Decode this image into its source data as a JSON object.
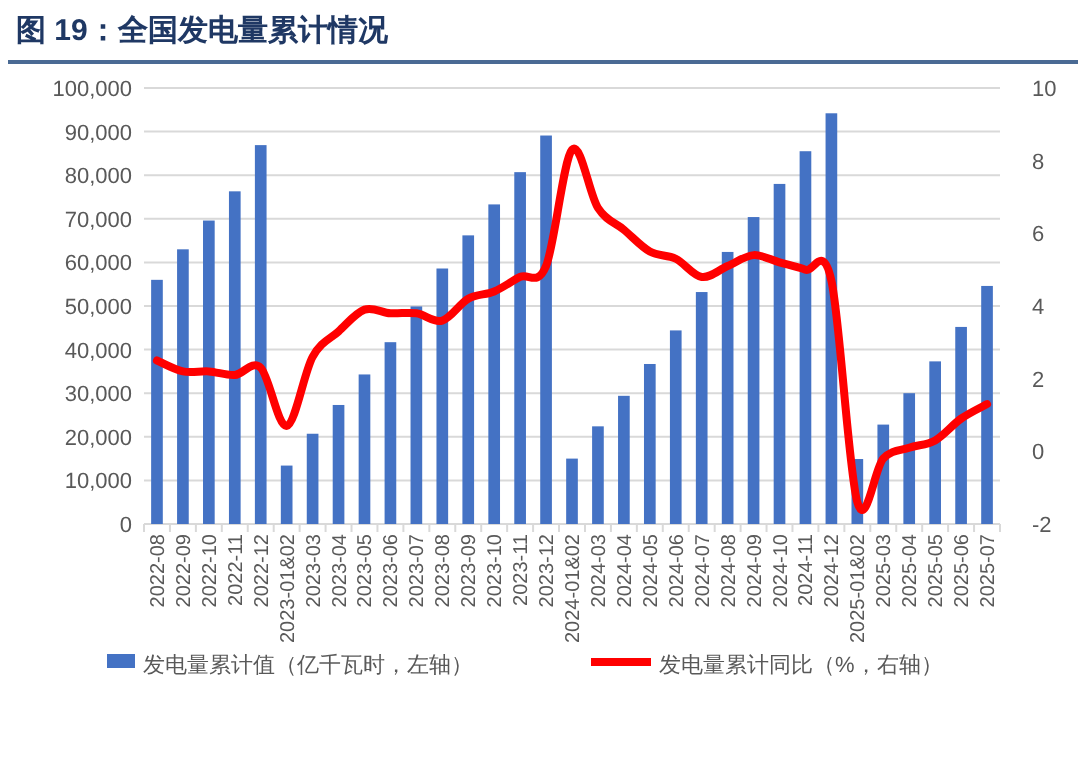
{
  "chart_data": {
    "type": "bar",
    "title": "图 19：全国发电量累计情况",
    "categories": [
      "2022-08",
      "2022-09",
      "2022-10",
      "2022-11",
      "2022-12",
      "2023-01&02",
      "2023-03",
      "2023-04",
      "2023-05",
      "2023-06",
      "2023-07",
      "2023-08",
      "2023-09",
      "2023-10",
      "2023-11",
      "2023-12",
      "2024-01&02",
      "2024-03",
      "2024-04",
      "2024-05",
      "2024-06",
      "2024-07",
      "2024-08",
      "2024-09",
      "2024-10",
      "2024-11",
      "2024-12",
      "2025-01&02",
      "2025-03",
      "2025-04",
      "2025-05",
      "2025-06",
      "2025-07"
    ],
    "series": [
      {
        "name": "发电量累计值（亿千瓦时，左轴）",
        "color": "#4472c4",
        "values": [
          56000,
          63000,
          69600,
          76300,
          86900,
          13400,
          20700,
          27300,
          34300,
          41700,
          49900,
          58600,
          66200,
          73300,
          80700,
          89100,
          15000,
          22400,
          29400,
          36700,
          44400,
          53200,
          62400,
          70400,
          78000,
          85500,
          94200,
          14900,
          22800,
          30000,
          37300,
          45200,
          54600
        ]
      },
      {
        "name": "发电量累计同比（%，右轴）",
        "type": "line",
        "axis": "y2",
        "color": "#ff0000",
        "values": [
          2.5,
          2.2,
          2.2,
          2.1,
          2.3,
          0.7,
          2.6,
          3.3,
          3.9,
          3.8,
          3.8,
          3.6,
          4.2,
          4.4,
          4.8,
          5.1,
          8.3,
          6.7,
          6.1,
          5.5,
          5.3,
          4.8,
          5.1,
          5.4,
          5.2,
          5.0,
          4.7,
          -1.4,
          -0.2,
          0.1,
          0.3,
          0.9,
          1.3
        ]
      }
    ],
    "ylim": [
      0,
      100000
    ],
    "yticks": [
      0,
      {
        "value": 10000,
        "label": "10,000"
      },
      {
        "value": 20000,
        "label": "20,000"
      },
      {
        "value": 30000,
        "label": "30,000"
      },
      {
        "value": 40000,
        "label": "40,000"
      },
      {
        "value": 50000,
        "label": "50,000"
      },
      {
        "value": 60000,
        "label": "60,000"
      },
      {
        "value": 70000,
        "label": "70,000"
      },
      {
        "value": 80000,
        "label": "80,000"
      },
      {
        "value": 90000,
        "label": "90,000"
      },
      {
        "value": 100000,
        "label": "100,000"
      }
    ],
    "y2lim": [
      -2,
      10
    ],
    "y2ticks": [
      -2,
      0,
      2,
      4,
      6,
      8,
      10
    ],
    "grid": "y",
    "legend": "bottom"
  }
}
